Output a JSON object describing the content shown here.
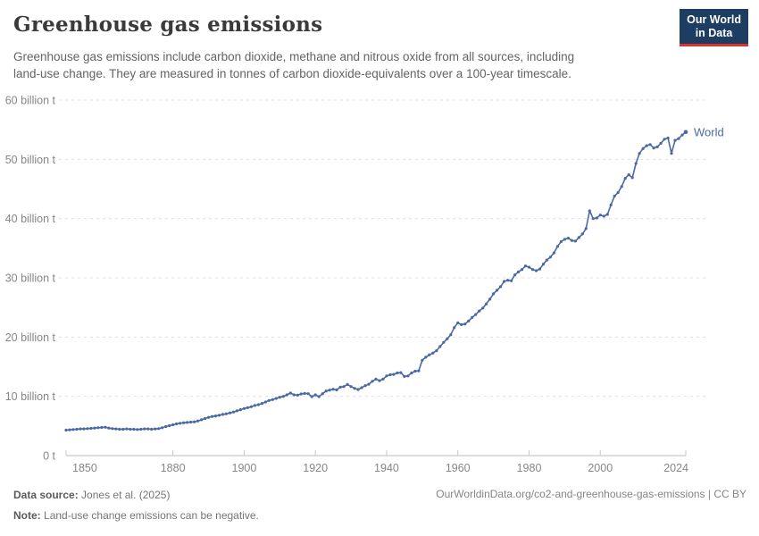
{
  "header": {
    "title": "Greenhouse gas emissions",
    "subtitle_lines": [
      "Greenhouse gas emissions include carbon dioxide, methane and nitrous oxide from all sources, including",
      "land-use change. They are measured in tonnes of carbon dioxide-equivalents over a 100-year timescale."
    ],
    "logo": {
      "line1": "Our World",
      "line2": "in Data",
      "bg_color": "#1d3d63",
      "accent_color": "#d8352a"
    }
  },
  "chart_data": {
    "type": "line",
    "title": "Greenhouse gas emissions",
    "unit": "billion t CO2-equivalents",
    "grid": "horizontal-dashed",
    "legend_position": "end-of-line-label",
    "xlim": [
      1850,
      2024
    ],
    "ylim": [
      0,
      60
    ],
    "x_ticks": [
      1850,
      1880,
      1900,
      1920,
      1940,
      1960,
      1980,
      2000,
      2024
    ],
    "y_ticks": [
      {
        "value": 0,
        "label": "0 t"
      },
      {
        "value": 10,
        "label": "10 billion t"
      },
      {
        "value": 20,
        "label": "20 billion t"
      },
      {
        "value": 30,
        "label": "30 billion t"
      },
      {
        "value": 40,
        "label": "40 billion t"
      },
      {
        "value": 50,
        "label": "50 billion t"
      },
      {
        "value": 60,
        "label": "60 billion t"
      }
    ],
    "start_year": 1850,
    "end_year": 2024,
    "series": [
      {
        "name": "World",
        "color": "#4a69a3",
        "values": [
          4.3,
          4.35,
          4.4,
          4.45,
          4.5,
          4.5,
          4.55,
          4.6,
          4.65,
          4.7,
          4.75,
          4.8,
          4.65,
          4.55,
          4.5,
          4.45,
          4.45,
          4.5,
          4.45,
          4.45,
          4.4,
          4.45,
          4.5,
          4.5,
          4.45,
          4.5,
          4.55,
          4.7,
          4.9,
          5.05,
          5.2,
          5.35,
          5.45,
          5.55,
          5.6,
          5.65,
          5.7,
          5.85,
          6.05,
          6.25,
          6.45,
          6.6,
          6.7,
          6.8,
          6.95,
          7.05,
          7.2,
          7.35,
          7.55,
          7.75,
          7.95,
          8.1,
          8.25,
          8.45,
          8.6,
          8.8,
          9.05,
          9.3,
          9.45,
          9.65,
          9.85,
          10.0,
          10.25,
          10.55,
          10.25,
          10.2,
          10.4,
          10.5,
          10.45,
          9.95,
          10.25,
          9.95,
          10.45,
          10.9,
          11.05,
          11.2,
          11.1,
          11.55,
          11.65,
          12.0,
          11.65,
          11.35,
          11.15,
          11.45,
          11.8,
          12.05,
          12.55,
          12.9,
          12.65,
          12.9,
          13.45,
          13.65,
          13.7,
          13.95,
          14.0,
          13.35,
          13.45,
          13.95,
          14.25,
          14.3,
          16.1,
          16.6,
          17.0,
          17.3,
          17.7,
          18.4,
          19.1,
          19.7,
          20.4,
          21.6,
          22.4,
          22.1,
          22.2,
          22.7,
          23.3,
          23.8,
          24.4,
          24.9,
          25.6,
          26.4,
          27.3,
          27.9,
          28.5,
          29.4,
          29.6,
          29.5,
          30.5,
          31.0,
          31.4,
          32.0,
          31.8,
          31.4,
          31.2,
          31.5,
          32.3,
          33.0,
          33.5,
          34.2,
          35.3,
          36.1,
          36.5,
          36.7,
          36.3,
          36.2,
          36.8,
          37.4,
          38.3,
          41.3,
          40.0,
          40.1,
          40.6,
          40.4,
          40.7,
          42.3,
          43.8,
          44.4,
          45.4,
          46.8,
          47.4,
          46.9,
          49.3,
          51.0,
          51.8,
          52.3,
          52.5,
          51.9,
          52.1,
          52.7,
          53.4,
          53.6,
          51.0,
          53.2,
          53.5,
          54.1,
          54.6
        ]
      }
    ]
  },
  "footer": {
    "datasource_label": "Data source:",
    "datasource_value": "Jones et al. (2025)",
    "note_label": "Note:",
    "note_value": "Land-use change emissions can be negative.",
    "link": "OurWorldinData.org/co2-and-greenhouse-gas-emissions | CC BY"
  }
}
